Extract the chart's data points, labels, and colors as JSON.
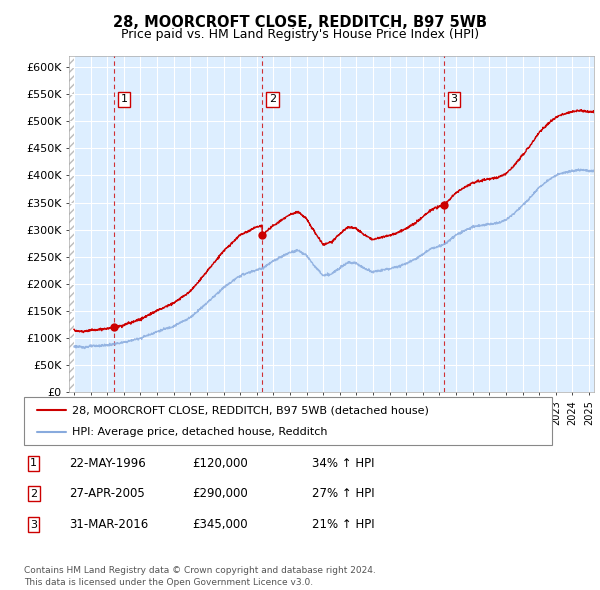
{
  "title1": "28, MOORCROFT CLOSE, REDDITCH, B97 5WB",
  "title2": "Price paid vs. HM Land Registry's House Price Index (HPI)",
  "ylabel_ticks": [
    "£0",
    "£50K",
    "£100K",
    "£150K",
    "£200K",
    "£250K",
    "£300K",
    "£350K",
    "£400K",
    "£450K",
    "£500K",
    "£550K",
    "£600K"
  ],
  "ytick_values": [
    0,
    50000,
    100000,
    150000,
    200000,
    250000,
    300000,
    350000,
    400000,
    450000,
    500000,
    550000,
    600000
  ],
  "xmin": 1993.7,
  "xmax": 2025.3,
  "ymin": 0,
  "ymax": 620000,
  "sale_dates": [
    1996.39,
    2005.32,
    2016.25
  ],
  "sale_prices": [
    120000,
    290000,
    345000
  ],
  "sale_labels": [
    "1",
    "2",
    "3"
  ],
  "legend_entries": [
    {
      "label": "28, MOORCROFT CLOSE, REDDITCH, B97 5WB (detached house)",
      "color": "#cc0000",
      "lw": 1.5
    },
    {
      "label": "HPI: Average price, detached house, Redditch",
      "color": "#88aadd",
      "lw": 1.5
    }
  ],
  "table_rows": [
    {
      "num": "1",
      "date": "22-MAY-1996",
      "price": "£120,000",
      "hpi": "34% ↑ HPI"
    },
    {
      "num": "2",
      "date": "27-APR-2005",
      "price": "£290,000",
      "hpi": "27% ↑ HPI"
    },
    {
      "num": "3",
      "date": "31-MAR-2016",
      "price": "£345,000",
      "hpi": "21% ↑ HPI"
    }
  ],
  "footer": "Contains HM Land Registry data © Crown copyright and database right 2024.\nThis data is licensed under the Open Government Licence v3.0.",
  "bg_color": "#ddeeff",
  "grid_color": "#ffffff",
  "sale_line_color": "#cc0000",
  "sale_dot_color": "#cc0000",
  "price_line_color": "#cc0000",
  "hpi_line_color": "#88aadd",
  "hpi_line_color2": "#aabbee"
}
